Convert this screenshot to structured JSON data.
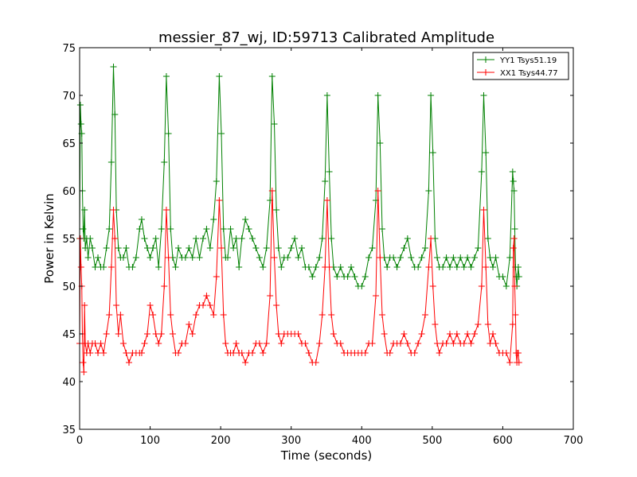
{
  "chart_data": {
    "type": "line",
    "title": "messier_87_wj, ID:59713 Calibrated Amplitude",
    "xlabel": "Time (seconds)",
    "ylabel": "Power in Kelvin",
    "xlim": [
      0,
      700
    ],
    "ylim": [
      35,
      75
    ],
    "xticks": [
      0,
      100,
      200,
      300,
      400,
      500,
      600,
      700
    ],
    "yticks": [
      35,
      40,
      45,
      50,
      55,
      60,
      65,
      70,
      75
    ],
    "grid": false,
    "legend_position": "top-right",
    "marker": "+",
    "series": [
      {
        "name": "YY1 Tsys51.19",
        "color": "#008000",
        "x": [
          0,
          1,
          2,
          3,
          4,
          5,
          6,
          7,
          8,
          10,
          12,
          15,
          18,
          22,
          26,
          30,
          34,
          38,
          42,
          45,
          48,
          50,
          52,
          55,
          58,
          62,
          66,
          70,
          75,
          80,
          85,
          88,
          92,
          96,
          100,
          104,
          108,
          112,
          116,
          120,
          123,
          126,
          129,
          132,
          136,
          140,
          145,
          150,
          155,
          160,
          165,
          170,
          175,
          180,
          185,
          190,
          194,
          198,
          201,
          204,
          207,
          210,
          214,
          218,
          222,
          226,
          230,
          235,
          240,
          245,
          250,
          255,
          260,
          265,
          270,
          273,
          276,
          279,
          282,
          286,
          290,
          295,
          300,
          305,
          310,
          315,
          320,
          325,
          330,
          335,
          340,
          344,
          348,
          351,
          354,
          357,
          360,
          365,
          370,
          375,
          380,
          385,
          390,
          395,
          400,
          405,
          410,
          415,
          420,
          423,
          426,
          429,
          432,
          436,
          440,
          445,
          450,
          455,
          460,
          465,
          470,
          475,
          480,
          485,
          490,
          495,
          498,
          501,
          504,
          507,
          510,
          515,
          520,
          525,
          530,
          535,
          540,
          545,
          550,
          555,
          560,
          565,
          570,
          573,
          576,
          579,
          582,
          586,
          590,
          595,
          600,
          605,
          610,
          614,
          615,
          616,
          617,
          618,
          619,
          620,
          621,
          622,
          623
        ],
        "y": [
          55,
          69,
          67,
          66,
          60,
          56,
          55,
          58,
          54,
          55,
          53,
          55,
          54,
          52,
          53,
          52,
          52,
          54,
          56,
          63,
          73,
          68,
          58,
          54,
          53,
          53,
          54,
          52,
          52,
          53,
          56,
          57,
          55,
          54,
          53,
          54,
          55,
          52,
          56,
          63,
          72,
          66,
          56,
          53,
          52,
          54,
          53,
          53,
          54,
          53,
          55,
          53,
          55,
          56,
          54,
          57,
          61,
          72,
          66,
          56,
          53,
          53,
          56,
          54,
          55,
          52,
          55,
          57,
          56,
          55,
          54,
          53,
          52,
          54,
          59,
          72,
          67,
          58,
          54,
          52,
          53,
          53,
          54,
          55,
          53,
          54,
          52,
          52,
          51,
          52,
          53,
          55,
          61,
          70,
          62,
          55,
          52,
          51,
          52,
          51,
          51,
          52,
          51,
          50,
          50,
          51,
          53,
          54,
          59,
          70,
          65,
          56,
          53,
          52,
          53,
          53,
          52,
          53,
          54,
          55,
          53,
          52,
          52,
          53,
          54,
          60,
          70,
          64,
          55,
          53,
          52,
          52,
          53,
          52,
          53,
          52,
          53,
          52,
          53,
          52,
          53,
          54,
          62,
          70,
          64,
          55,
          53,
          52,
          53,
          51,
          51,
          50,
          53,
          62,
          61,
          60,
          56,
          52,
          51,
          50,
          51,
          52,
          51
        ]
      },
      {
        "name": "XX1 Tsys44.77",
        "color": "#ff0000",
        "x": [
          0,
          1,
          2,
          3,
          4,
          5,
          6,
          7,
          8,
          10,
          12,
          15,
          18,
          22,
          26,
          30,
          34,
          38,
          42,
          45,
          48,
          50,
          52,
          55,
          58,
          62,
          66,
          70,
          75,
          80,
          85,
          88,
          92,
          96,
          100,
          104,
          108,
          112,
          116,
          120,
          123,
          126,
          129,
          132,
          136,
          140,
          145,
          150,
          155,
          160,
          165,
          170,
          175,
          180,
          185,
          190,
          194,
          198,
          201,
          204,
          207,
          210,
          214,
          218,
          222,
          226,
          230,
          235,
          240,
          245,
          250,
          255,
          260,
          265,
          270,
          273,
          276,
          279,
          282,
          286,
          290,
          295,
          300,
          305,
          310,
          315,
          320,
          325,
          330,
          335,
          340,
          344,
          348,
          351,
          354,
          357,
          360,
          365,
          370,
          375,
          380,
          385,
          390,
          395,
          400,
          405,
          410,
          415,
          420,
          423,
          426,
          429,
          432,
          436,
          440,
          445,
          450,
          455,
          460,
          465,
          470,
          475,
          480,
          485,
          490,
          495,
          498,
          501,
          504,
          507,
          510,
          515,
          520,
          525,
          530,
          535,
          540,
          545,
          550,
          555,
          560,
          565,
          570,
          573,
          576,
          579,
          582,
          586,
          590,
          595,
          600,
          605,
          610,
          614,
          615,
          616,
          617,
          618,
          619,
          620,
          621,
          622,
          623
        ],
        "y": [
          44,
          55,
          52,
          50,
          45,
          42,
          41,
          48,
          44,
          43,
          44,
          43,
          44,
          44,
          43,
          44,
          43,
          45,
          47,
          52,
          58,
          55,
          48,
          45,
          47,
          44,
          43,
          42,
          43,
          43,
          43,
          43,
          44,
          45,
          48,
          47,
          45,
          44,
          45,
          50,
          58,
          53,
          47,
          45,
          43,
          43,
          44,
          44,
          46,
          45,
          47,
          48,
          48,
          49,
          48,
          47,
          51,
          59,
          54,
          47,
          44,
          43,
          43,
          43,
          44,
          43,
          43,
          42,
          43,
          43,
          44,
          44,
          43,
          44,
          49,
          60,
          53,
          48,
          45,
          44,
          45,
          45,
          45,
          45,
          45,
          44,
          44,
          43,
          42,
          42,
          44,
          47,
          52,
          59,
          52,
          47,
          45,
          44,
          44,
          43,
          43,
          43,
          43,
          43,
          43,
          43,
          44,
          44,
          49,
          60,
          53,
          47,
          45,
          43,
          43,
          44,
          44,
          44,
          45,
          44,
          43,
          43,
          44,
          45,
          47,
          52,
          55,
          50,
          46,
          44,
          43,
          44,
          44,
          45,
          44,
          45,
          44,
          44,
          45,
          44,
          45,
          46,
          50,
          58,
          52,
          46,
          44,
          45,
          44,
          43,
          43,
          43,
          42,
          46,
          54,
          55,
          50,
          47,
          43,
          42,
          43,
          43,
          42
        ]
      }
    ]
  }
}
